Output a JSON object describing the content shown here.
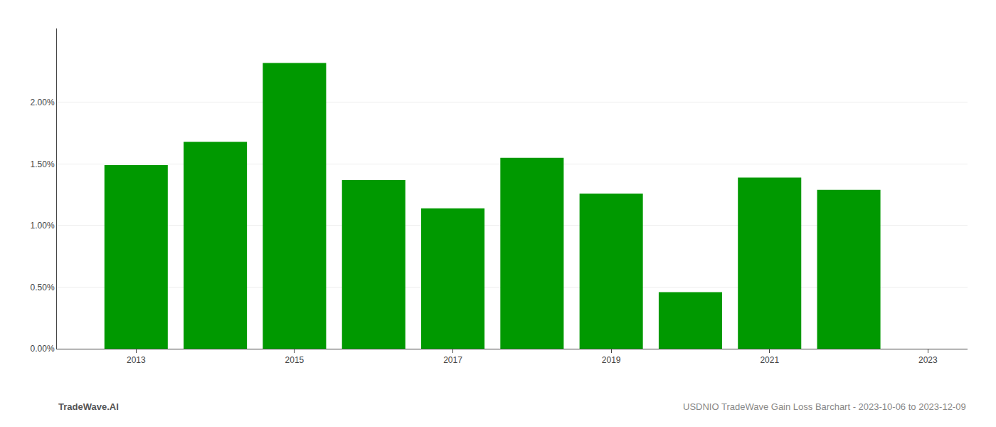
{
  "chart_data": {
    "type": "bar",
    "x": [
      2013,
      2014,
      2015,
      2016,
      2017,
      2018,
      2019,
      2020,
      2021,
      2022
    ],
    "values": [
      0.0149,
      0.0168,
      0.0232,
      0.0137,
      0.0114,
      0.0155,
      0.0126,
      0.0046,
      0.0139,
      0.0129
    ],
    "color": "#009900",
    "xlim": [
      2012.0,
      2023.5
    ],
    "xticks": [
      2013,
      2015,
      2017,
      2019,
      2021,
      2023
    ],
    "ylim": [
      0,
      0.026
    ],
    "yticks": [
      {
        "value": 0.0,
        "label": "0.00%"
      },
      {
        "value": 0.005,
        "label": "0.50%"
      },
      {
        "value": 0.01,
        "label": "1.00%"
      },
      {
        "value": 0.015,
        "label": "1.50%"
      },
      {
        "value": 0.02,
        "label": "2.00%"
      }
    ],
    "grid": true,
    "annotations": [
      "TradeWave.AI",
      "USDNIO TradeWave Gain Loss Barchart - 2023-10-06 to 2023-12-09"
    ]
  }
}
